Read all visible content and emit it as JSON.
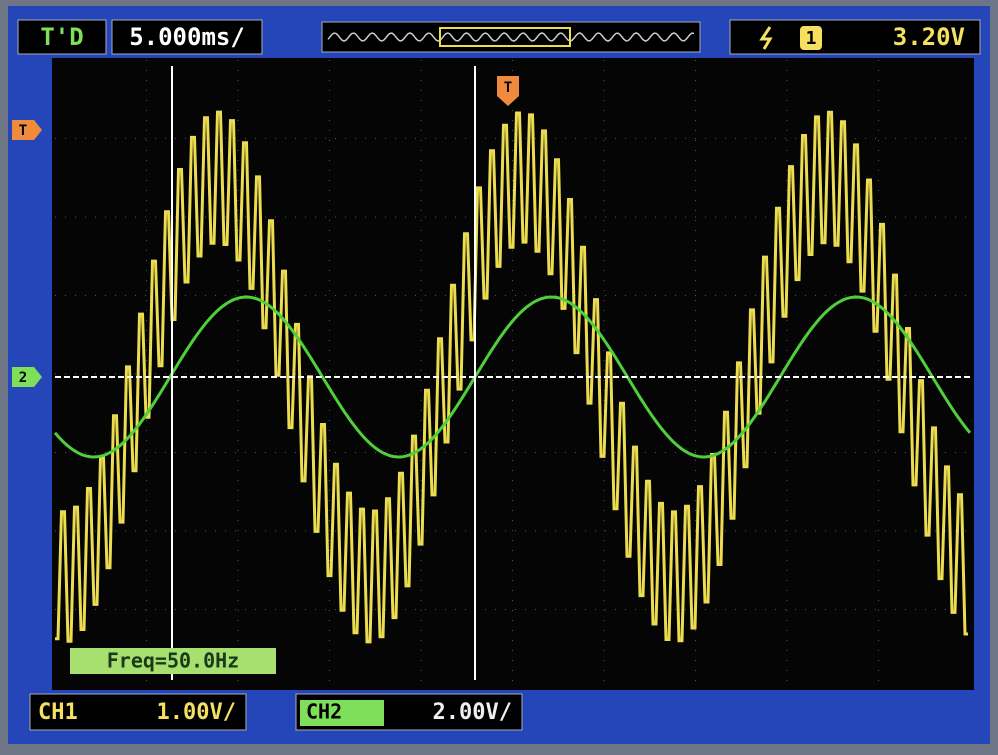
{
  "top_bar": {
    "mode": "T'D",
    "timebase": "5.000ms/",
    "trigger": {
      "source": "1",
      "level": "3.20V"
    }
  },
  "markers": {
    "trigger_level": "T",
    "ch2_ground": "2",
    "trigger_position": "T"
  },
  "measurement": "Freq=50.0Hz",
  "bottom_bar": {
    "ch1": {
      "label": "CH1",
      "scale": "1.00V/"
    },
    "ch2": {
      "label": "CH2",
      "scale": "2.00V/"
    }
  }
}
